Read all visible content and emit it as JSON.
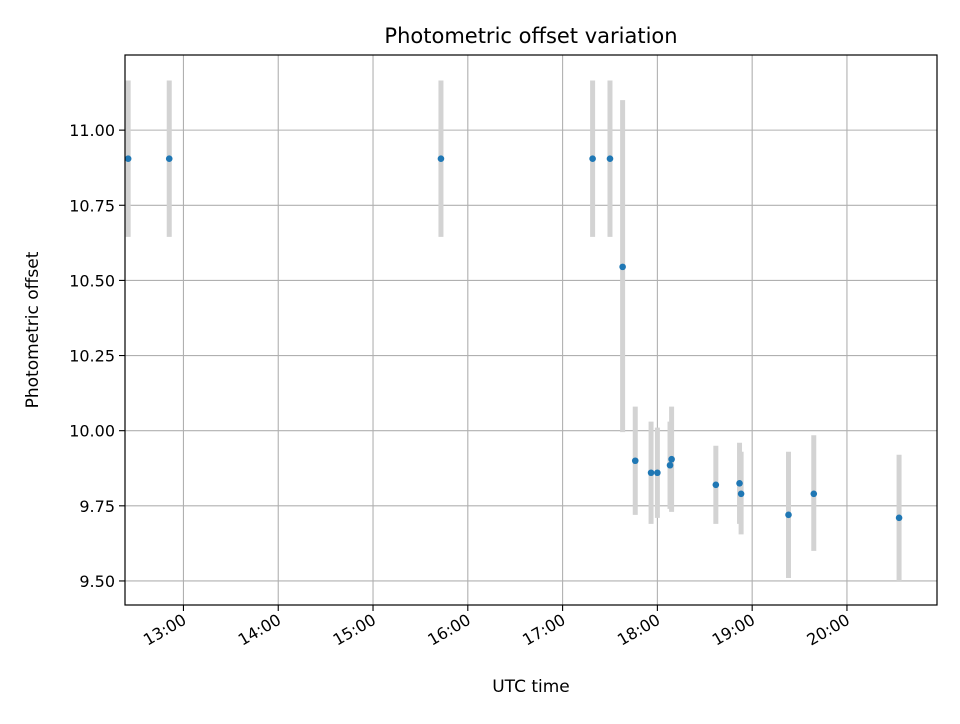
{
  "chart_data": {
    "type": "scatter",
    "title": "Photometric offset variation",
    "xlabel": "UTC time",
    "ylabel": "Photometric offset",
    "xlim": [
      "12:23",
      "20:57"
    ],
    "ylim": [
      9.42,
      11.25
    ],
    "x_ticks": [
      "13:00",
      "14:00",
      "15:00",
      "16:00",
      "17:00",
      "18:00",
      "19:00",
      "20:00"
    ],
    "y_ticks": [
      "9.50",
      "9.75",
      "10.00",
      "10.25",
      "10.50",
      "10.75",
      "11.00"
    ],
    "grid": true,
    "colors": {
      "points": "#1f77b4",
      "errorbars": "#d3d3d3",
      "grid": "#b0b0b0"
    },
    "points": [
      {
        "x": "12:25",
        "y": 10.905,
        "ylow": 10.645,
        "yhigh": 11.165
      },
      {
        "x": "12:51",
        "y": 10.905,
        "ylow": 10.645,
        "yhigh": 11.165
      },
      {
        "x": "15:43",
        "y": 10.905,
        "ylow": 10.645,
        "yhigh": 11.165
      },
      {
        "x": "17:19",
        "y": 10.905,
        "ylow": 10.645,
        "yhigh": 11.165
      },
      {
        "x": "17:30",
        "y": 10.905,
        "ylow": 10.645,
        "yhigh": 11.165
      },
      {
        "x": "17:38",
        "y": 10.545,
        "ylow": 9.995,
        "yhigh": 11.1
      },
      {
        "x": "17:46",
        "y": 9.9,
        "ylow": 9.72,
        "yhigh": 10.08
      },
      {
        "x": "17:56",
        "y": 9.86,
        "ylow": 9.69,
        "yhigh": 10.03
      },
      {
        "x": "18:00",
        "y": 9.86,
        "ylow": 9.71,
        "yhigh": 10.01
      },
      {
        "x": "18:08",
        "y": 9.885,
        "ylow": 9.74,
        "yhigh": 10.03
      },
      {
        "x": "18:09",
        "y": 9.905,
        "ylow": 9.73,
        "yhigh": 10.08
      },
      {
        "x": "18:37",
        "y": 9.82,
        "ylow": 9.69,
        "yhigh": 9.95
      },
      {
        "x": "18:52",
        "y": 9.825,
        "ylow": 9.69,
        "yhigh": 9.96
      },
      {
        "x": "18:53",
        "y": 9.79,
        "ylow": 9.655,
        "yhigh": 9.93
      },
      {
        "x": "19:23",
        "y": 9.72,
        "ylow": 9.51,
        "yhigh": 9.93
      },
      {
        "x": "19:39",
        "y": 9.79,
        "ylow": 9.6,
        "yhigh": 9.985
      },
      {
        "x": "20:33",
        "y": 9.71,
        "ylow": 9.5,
        "yhigh": 9.92
      }
    ]
  }
}
